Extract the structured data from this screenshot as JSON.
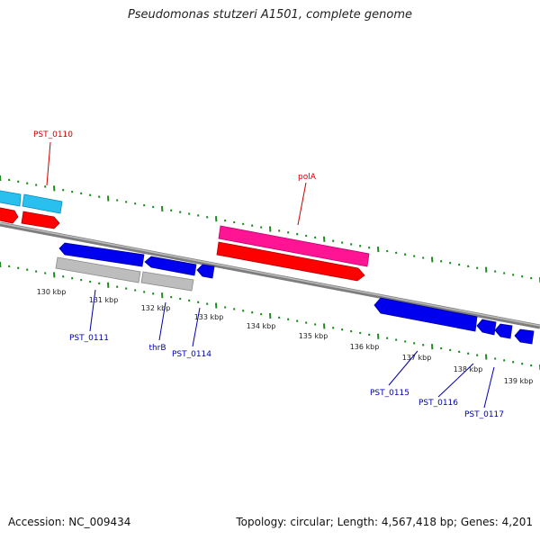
{
  "title": "Pseudomonas stutzeri A1501, complete genome",
  "footer": {
    "accession": "Accession: NC_009434",
    "summary": "Topology: circular; Length: 4,567,418 bp; Genes: 4,201"
  },
  "colors": {
    "backbone": "#8a8a8a",
    "tick": "#1e8a1e",
    "cds_forward": "#ff0000",
    "gene_forward": "#ff1493",
    "cds_reverse": "#0000ee",
    "gene_reverse_gray": "#b8b8b8",
    "gene_forward_cyan": "#29c0f0",
    "label_forward": "#cc0000",
    "label_reverse": "#0000aa",
    "tick_label": "#222222"
  },
  "scale": {
    "labels": [
      "130 kbp",
      "131 kbp",
      "132 kbp",
      "133 kbp",
      "134 kbp",
      "135 kbp",
      "136 kbp",
      "137 kbp",
      "138 kbp",
      "139 kbp"
    ]
  },
  "features": {
    "forward": [
      {
        "label": "PST_0110"
      },
      {
        "label": "polA"
      }
    ],
    "reverse": [
      {
        "label": "PST_0111"
      },
      {
        "label": "thrB"
      },
      {
        "label": "PST_0114"
      },
      {
        "label": "PST_0115"
      },
      {
        "label": "PST_0116"
      },
      {
        "label": "PST_0117"
      }
    ]
  }
}
